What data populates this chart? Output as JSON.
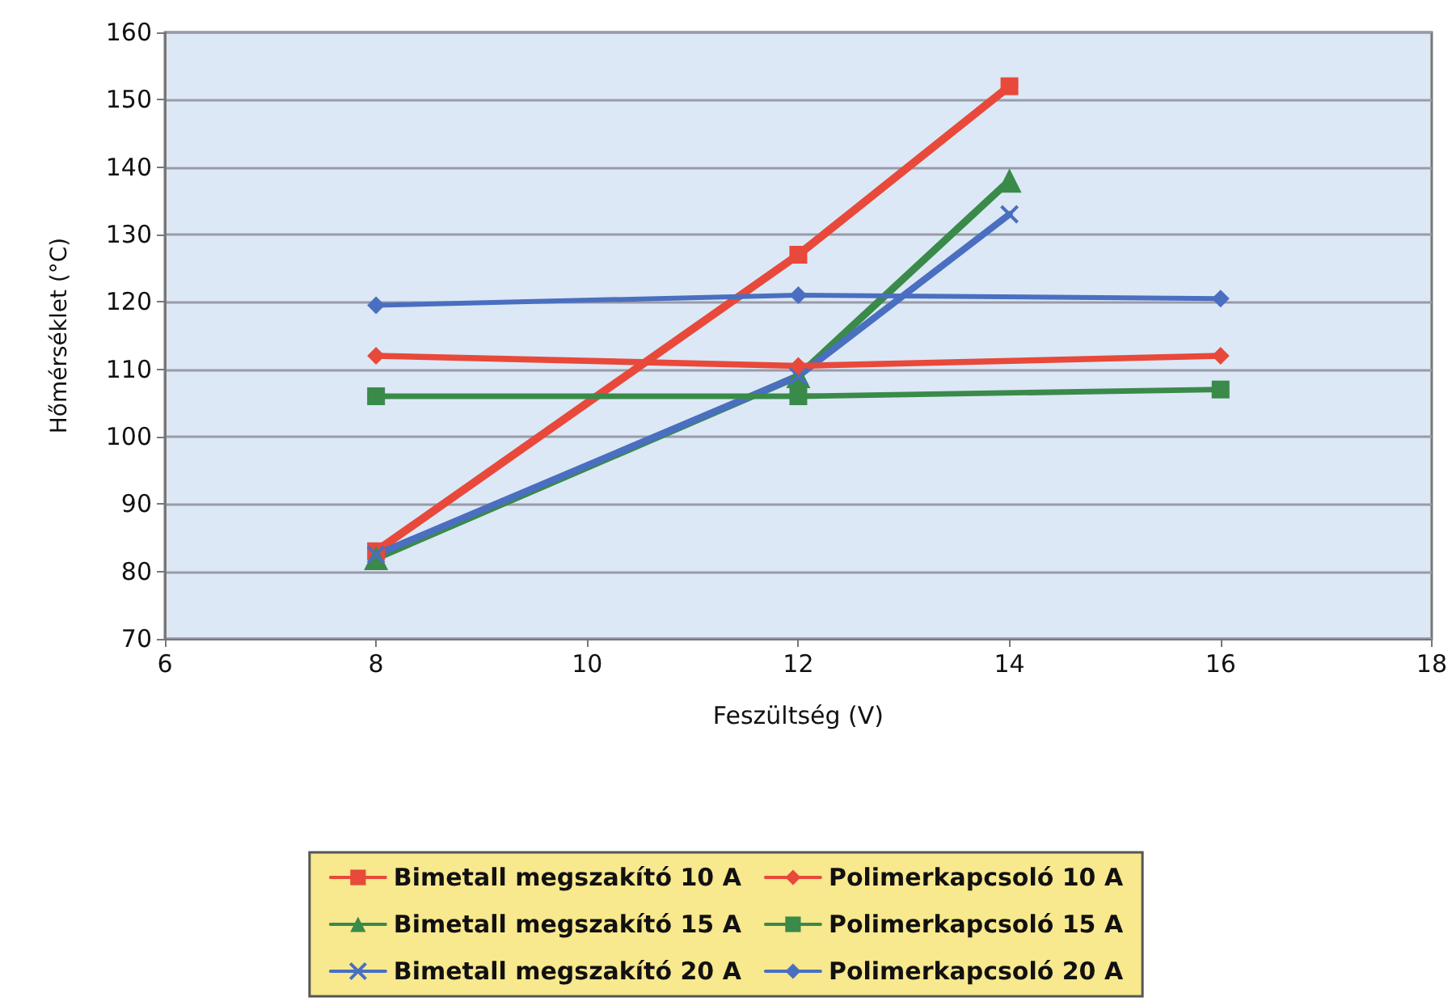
{
  "chart_data": {
    "type": "line",
    "xlabel": "Feszültség (V)",
    "ylabel": "Hőmérséklet (°C)",
    "xlim": [
      6,
      18
    ],
    "xticks": [
      6,
      8,
      10,
      12,
      14,
      16,
      18
    ],
    "ylim": [
      70,
      160
    ],
    "yticks": [
      70,
      80,
      90,
      100,
      110,
      120,
      130,
      140,
      150,
      160
    ],
    "grid": "y",
    "legend": "bottom",
    "line_style": "solid",
    "series": [
      {
        "name": "Bimetall megszakító 10 A",
        "color": "#e8493a",
        "marker": "square",
        "x": [
          8,
          12,
          14
        ],
        "values": [
          83,
          127,
          152
        ]
      },
      {
        "name": "Bimetall megszakító 15 A",
        "color": "#3a8a4a",
        "marker": "triangle",
        "x": [
          8,
          12,
          14
        ],
        "values": [
          82,
          109,
          138
        ]
      },
      {
        "name": "Bimetall megszakító 20 A",
        "color": "#4a6fc0",
        "marker": "cross",
        "x": [
          8,
          12,
          14
        ],
        "values": [
          82.5,
          109,
          133
        ]
      },
      {
        "name": "Polimerkapcsoló 10 A",
        "color": "#e8493a",
        "marker": "diamond",
        "x": [
          8,
          12,
          16
        ],
        "values": [
          112,
          110.5,
          112
        ]
      },
      {
        "name": "Polimerkapcsoló 15 A",
        "color": "#3a8a4a",
        "marker": "square",
        "x": [
          8,
          12,
          16
        ],
        "values": [
          106,
          106,
          107
        ]
      },
      {
        "name": "Polimerkapcsoló 20 A",
        "color": "#4a6fc0",
        "marker": "diamond",
        "x": [
          8,
          12,
          16
        ],
        "values": [
          119.5,
          121,
          120.5
        ]
      }
    ]
  }
}
